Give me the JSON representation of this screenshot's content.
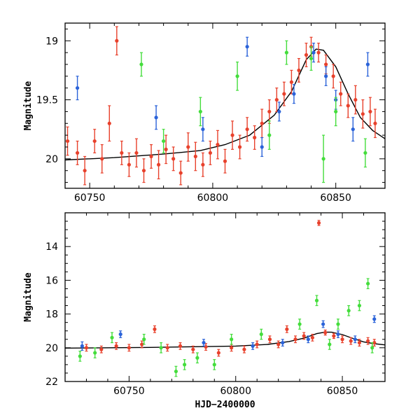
{
  "chart_data": [
    {
      "type": "scatter",
      "panel": "top",
      "title": "",
      "xlabel": "",
      "ylabel": "Magnitude",
      "xlim": [
        60740,
        60870
      ],
      "ylim": [
        20.25,
        18.85
      ],
      "y_inverted": true,
      "xticks": [
        60750,
        60800,
        60850
      ],
      "xtick_labels": [
        "60750",
        "60800",
        "60850"
      ],
      "yticks": [
        19,
        19.5,
        20
      ],
      "ytick_labels": [
        "19",
        "19.5",
        "20"
      ],
      "grid": false,
      "legend": "none",
      "fit_curve": {
        "color": "#000000",
        "x": [
          60740,
          60760,
          60780,
          60795,
          60805,
          60815,
          60825,
          60832,
          60838,
          60842,
          60845,
          60850,
          60855,
          60860,
          60865,
          60870
        ],
        "y": [
          20.01,
          19.99,
          19.96,
          19.93,
          19.88,
          19.8,
          19.63,
          19.43,
          19.16,
          19.07,
          19.08,
          19.22,
          19.45,
          19.65,
          19.76,
          19.83
        ]
      },
      "series": [
        {
          "name": "",
          "color": "#e8412c",
          "points": [
            [
              60741,
              19.85,
              0.12
            ],
            [
              60745,
              19.95,
              0.1
            ],
            [
              60748,
              20.1,
              0.12
            ],
            [
              60752,
              19.85,
              0.1
            ],
            [
              60755,
              20.0,
              0.12
            ],
            [
              60758,
              19.7,
              0.15
            ],
            [
              60761,
              19.0,
              0.12
            ],
            [
              60763,
              19.95,
              0.1
            ],
            [
              60766,
              20.05,
              0.1
            ],
            [
              60769,
              19.95,
              0.12
            ],
            [
              60772,
              20.1,
              0.1
            ],
            [
              60775,
              19.98,
              0.1
            ],
            [
              60778,
              20.05,
              0.12
            ],
            [
              60781,
              19.92,
              0.12
            ],
            [
              60784,
              20.0,
              0.1
            ],
            [
              60787,
              20.12,
              0.1
            ],
            [
              60790,
              19.9,
              0.12
            ],
            [
              60793,
              19.98,
              0.12
            ],
            [
              60796,
              20.05,
              0.1
            ],
            [
              60799,
              19.95,
              0.1
            ],
            [
              60802,
              19.88,
              0.12
            ],
            [
              60805,
              20.02,
              0.1
            ],
            [
              60808,
              19.8,
              0.12
            ],
            [
              60811,
              19.9,
              0.1
            ],
            [
              60814,
              19.75,
              0.1
            ],
            [
              60817,
              19.82,
              0.1
            ],
            [
              60820,
              19.7,
              0.12
            ],
            [
              60823,
              19.6,
              0.1
            ],
            [
              60826,
              19.5,
              0.1
            ],
            [
              60829,
              19.45,
              0.1
            ],
            [
              60832,
              19.35,
              0.1
            ],
            [
              60835,
              19.25,
              0.1
            ],
            [
              60838,
              19.12,
              0.1
            ],
            [
              60840,
              19.05,
              0.08
            ],
            [
              60843,
              19.1,
              0.08
            ],
            [
              60846,
              19.2,
              0.08
            ],
            [
              60849,
              19.3,
              0.1
            ],
            [
              60852,
              19.45,
              0.1
            ],
            [
              60855,
              19.55,
              0.1
            ],
            [
              60858,
              19.5,
              0.12
            ],
            [
              60861,
              19.62,
              0.12
            ],
            [
              60864,
              19.6,
              0.12
            ],
            [
              60866,
              19.7,
              0.12
            ]
          ]
        },
        {
          "name": "",
          "color": "#2b63d9",
          "points": [
            [
              60745,
              19.4,
              0.1
            ],
            [
              60777,
              19.65,
              0.1
            ],
            [
              60796,
              19.75,
              0.1
            ],
            [
              60814,
              19.05,
              0.08
            ],
            [
              60820,
              19.9,
              0.08
            ],
            [
              60827,
              19.6,
              0.08
            ],
            [
              60833,
              19.45,
              0.08
            ],
            [
              60841,
              19.1,
              0.08
            ],
            [
              60846,
              19.3,
              0.08
            ],
            [
              60850,
              19.5,
              0.08
            ],
            [
              60857,
              19.75,
              0.1
            ],
            [
              60863,
              19.2,
              0.1
            ]
          ]
        },
        {
          "name": "",
          "color": "#44dd3c",
          "points": [
            [
              60771,
              19.2,
              0.1
            ],
            [
              60780,
              19.85,
              0.1
            ],
            [
              60795,
              19.6,
              0.12
            ],
            [
              60810,
              19.3,
              0.12
            ],
            [
              60823,
              19.8,
              0.12
            ],
            [
              60830,
              19.1,
              0.1
            ],
            [
              60840,
              19.15,
              0.1
            ],
            [
              60845,
              20.0,
              0.2
            ],
            [
              60850,
              19.6,
              0.12
            ],
            [
              60862,
              19.95,
              0.12
            ]
          ]
        }
      ]
    },
    {
      "type": "scatter",
      "panel": "bottom",
      "title": "",
      "xlabel": "HJD−2400000",
      "ylabel": "Magnitude",
      "xlim": [
        60720,
        60870
      ],
      "ylim": [
        22,
        12
      ],
      "y_inverted": true,
      "xticks": [
        60750,
        60800,
        60850
      ],
      "xtick_labels": [
        "60750",
        "60800",
        "60850"
      ],
      "yticks": [
        14,
        16,
        18,
        20,
        22
      ],
      "ytick_labels": [
        "14",
        "16",
        "18",
        "20",
        "22"
      ],
      "grid": false,
      "legend": "none",
      "fit_curve": {
        "color": "#000000",
        "x": [
          60720,
          60760,
          60800,
          60815,
          60825,
          60832,
          60838,
          60842,
          60845,
          60850,
          60855,
          60860,
          60865,
          60870
        ],
        "y": [
          20.02,
          19.98,
          19.9,
          19.8,
          19.63,
          19.43,
          19.16,
          19.07,
          19.08,
          19.22,
          19.45,
          19.65,
          19.76,
          19.83
        ]
      },
      "series": [
        {
          "name": "",
          "color": "#e8412c",
          "points": [
            [
              60730,
              20.0,
              0.2
            ],
            [
              60737,
              20.1,
              0.2
            ],
            [
              60744,
              19.9,
              0.2
            ],
            [
              60750,
              20.0,
              0.2
            ],
            [
              60756,
              19.8,
              0.2
            ],
            [
              60762,
              18.9,
              0.2
            ],
            [
              60768,
              20.0,
              0.2
            ],
            [
              60774,
              19.9,
              0.2
            ],
            [
              60780,
              20.1,
              0.2
            ],
            [
              60786,
              19.95,
              0.2
            ],
            [
              60792,
              20.3,
              0.2
            ],
            [
              60798,
              20.0,
              0.2
            ],
            [
              60804,
              20.1,
              0.2
            ],
            [
              60810,
              19.8,
              0.2
            ],
            [
              60816,
              19.5,
              0.2
            ],
            [
              60820,
              19.8,
              0.2
            ],
            [
              60824,
              18.9,
              0.2
            ],
            [
              60828,
              19.5,
              0.2
            ],
            [
              60832,
              19.3,
              0.2
            ],
            [
              60836,
              19.4,
              0.2
            ],
            [
              60839,
              12.6,
              0.15
            ],
            [
              60842,
              19.1,
              0.15
            ],
            [
              60846,
              19.3,
              0.15
            ],
            [
              60850,
              19.5,
              0.2
            ],
            [
              60854,
              19.6,
              0.2
            ],
            [
              60858,
              19.7,
              0.2
            ],
            [
              60862,
              19.6,
              0.2
            ],
            [
              60865,
              19.7,
              0.2
            ]
          ]
        },
        {
          "name": "",
          "color": "#2b63d9",
          "points": [
            [
              60728,
              19.9,
              0.25
            ],
            [
              60746,
              19.2,
              0.2
            ],
            [
              60785,
              19.7,
              0.2
            ],
            [
              60808,
              19.9,
              0.2
            ],
            [
              60822,
              19.7,
              0.2
            ],
            [
              60834,
              19.5,
              0.2
            ],
            [
              60841,
              18.6,
              0.2
            ],
            [
              60848,
              19.2,
              0.2
            ],
            [
              60856,
              19.5,
              0.2
            ],
            [
              60865,
              18.3,
              0.2
            ]
          ]
        },
        {
          "name": "",
          "color": "#44dd3c",
          "points": [
            [
              60727,
              20.5,
              0.3
            ],
            [
              60734,
              20.3,
              0.3
            ],
            [
              60742,
              19.4,
              0.3
            ],
            [
              60757,
              19.5,
              0.3
            ],
            [
              60765,
              20.0,
              0.3
            ],
            [
              60772,
              21.4,
              0.3
            ],
            [
              60776,
              21.0,
              0.3
            ],
            [
              60782,
              20.6,
              0.3
            ],
            [
              60790,
              21.0,
              0.3
            ],
            [
              60798,
              19.5,
              0.3
            ],
            [
              60812,
              19.2,
              0.3
            ],
            [
              60830,
              18.6,
              0.3
            ],
            [
              60838,
              17.2,
              0.3
            ],
            [
              60844,
              19.8,
              0.3
            ],
            [
              60848,
              18.6,
              0.3
            ],
            [
              60853,
              17.8,
              0.3
            ],
            [
              60858,
              17.5,
              0.3
            ],
            [
              60862,
              16.2,
              0.3
            ],
            [
              60864,
              20.0,
              0.3
            ]
          ]
        }
      ]
    }
  ]
}
